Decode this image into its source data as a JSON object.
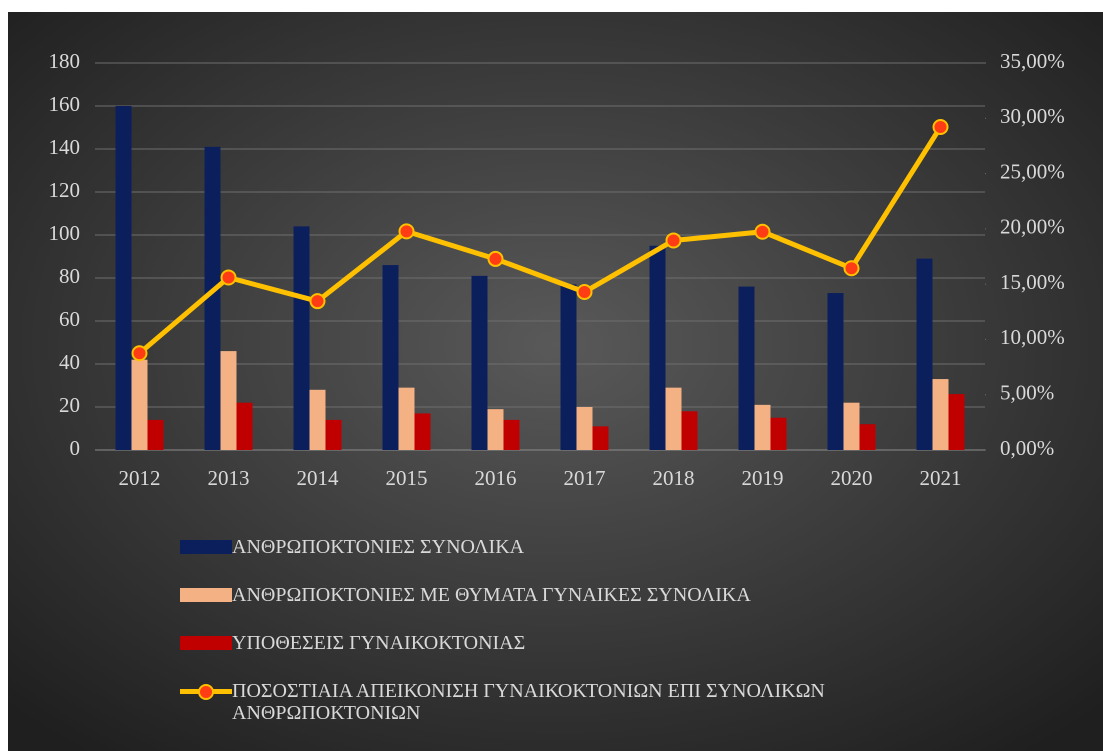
{
  "chart_data": {
    "type": "bar",
    "categories": [
      "2012",
      "2013",
      "2014",
      "2015",
      "2016",
      "2017",
      "2018",
      "2019",
      "2020",
      "2021"
    ],
    "series": [
      {
        "name": "ΑΝΘΡΩΠΟΚΤΟΝΙΕΣ ΣΥΝΟΛΙΚΑ",
        "color": "#0b1f5c",
        "values": [
          160,
          141,
          104,
          86,
          81,
          77,
          95,
          76,
          73,
          89
        ]
      },
      {
        "name": "ΑΝΘΡΩΠΟΚΤΟΝΙΕΣ ΜΕ ΘΥΜΑΤΑ ΓΥΝΑΙΚΕΣ ΣΥΝΟΛΙΚΑ",
        "color": "#f4b183",
        "values": [
          42,
          46,
          28,
          29,
          19,
          20,
          29,
          21,
          22,
          33
        ]
      },
      {
        "name": "ΥΠΟΘΕΣΕΙΣ ΓΥΝΑΙΚΟΚΤΟΝΙΑΣ",
        "color": "#c00000",
        "values": [
          14,
          22,
          14,
          17,
          14,
          11,
          18,
          15,
          12,
          26
        ]
      },
      {
        "name": "ΠΟΣΟΣΤΙΑΙΑ ΑΠΕΙΚΟΝΙΣΗ ΓΥΝΑΙΚΟΚΤΟΝΙΩΝ ΕΠΙ ΣΥΝΟΛΙΚΩΝ ΑΝΘΡΩΠΟΚΤΟΝΙΩΝ",
        "color": "#ffc000",
        "marker_color": "#ff3c14",
        "type": "line",
        "axis": "y2",
        "values": [
          8.75,
          15.6,
          13.46,
          19.77,
          17.28,
          14.29,
          18.95,
          19.74,
          16.44,
          29.21
        ]
      }
    ],
    "ylim": [
      0,
      180
    ],
    "yticks": [
      0,
      20,
      40,
      60,
      80,
      100,
      120,
      140,
      160,
      180
    ],
    "y2lim": [
      0,
      35
    ],
    "y2ticks": [
      {
        "value": 0,
        "label": "0,00%"
      },
      {
        "value": 5,
        "label": "5,00%"
      },
      {
        "value": 10,
        "label": "10,00%"
      },
      {
        "value": 15,
        "label": "15,00%"
      },
      {
        "value": 20,
        "label": "20,00%"
      },
      {
        "value": 25,
        "label": "25,00%"
      },
      {
        "value": 30,
        "label": "30,00%"
      },
      {
        "value": 35,
        "label": "35,00%"
      }
    ],
    "grid": true,
    "legend": "bottom"
  }
}
